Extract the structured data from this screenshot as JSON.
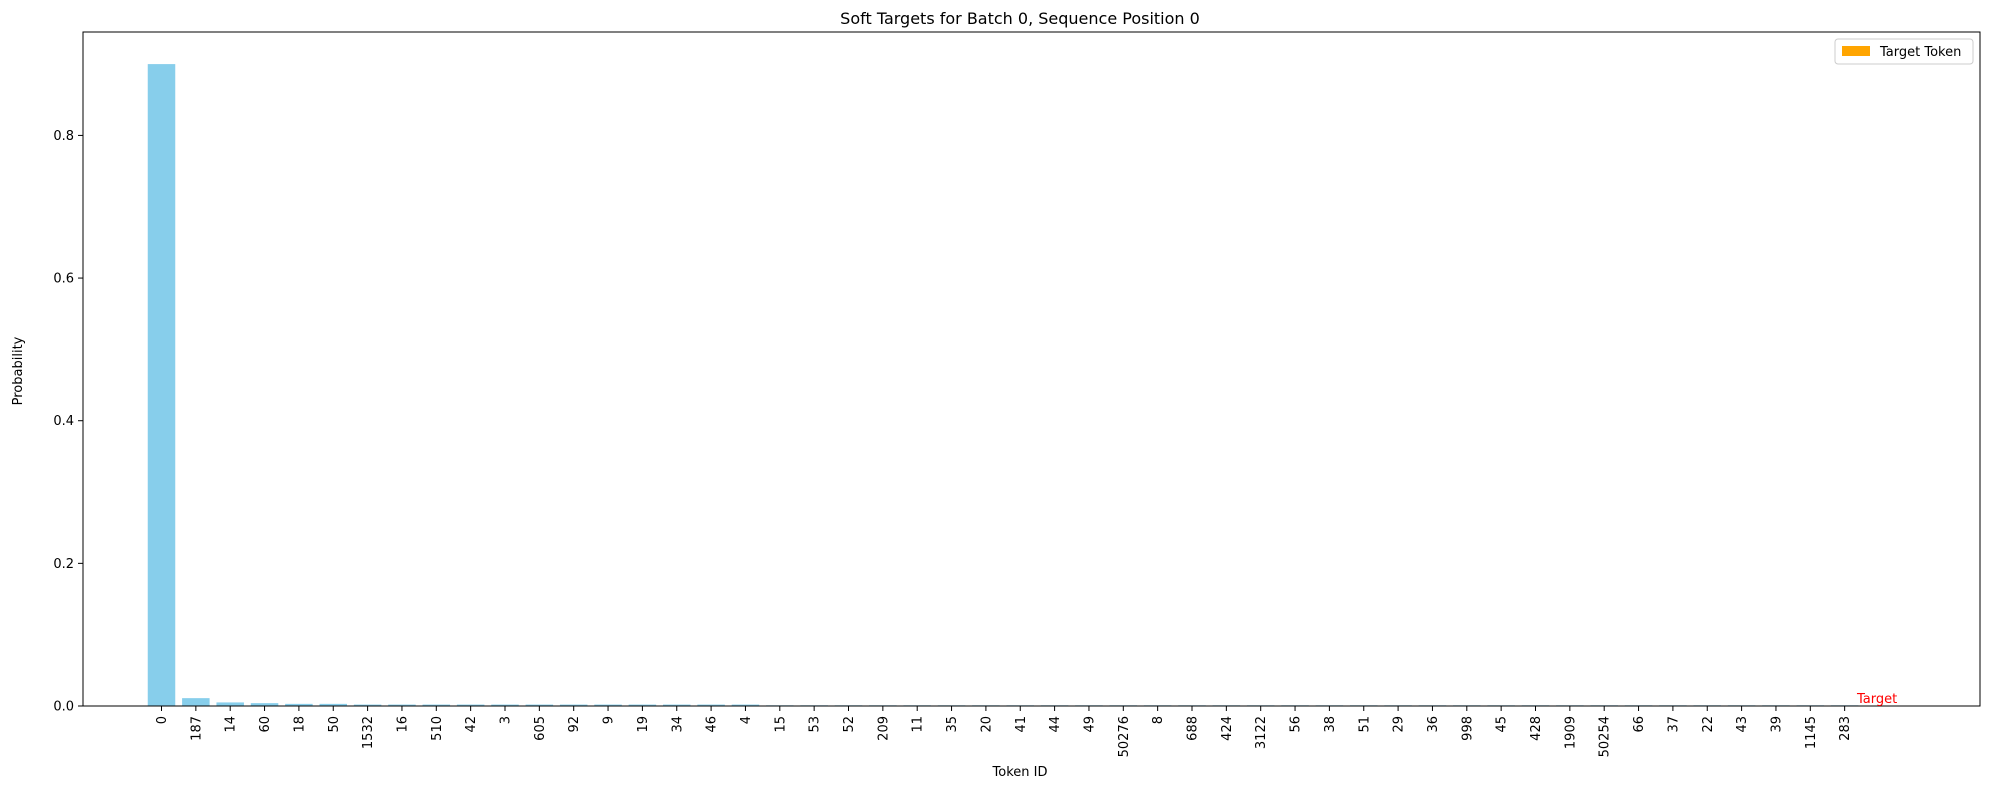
{
  "chart_data": {
    "type": "bar",
    "title": "Soft Targets for Batch 0, Sequence Position 0",
    "xlabel": "Token ID",
    "ylabel": "Probability",
    "ylim": [
      0,
      0.945
    ],
    "yticks": [
      0.0,
      0.2,
      0.4,
      0.6,
      0.8
    ],
    "ytick_labels": [
      "0.0",
      "0.2",
      "0.4",
      "0.6",
      "0.8"
    ],
    "categories": [
      "0",
      "187",
      "14",
      "60",
      "18",
      "50",
      "1532",
      "16",
      "510",
      "42",
      "3",
      "605",
      "92",
      "9",
      "19",
      "34",
      "46",
      "4",
      "15",
      "53",
      "52",
      "209",
      "11",
      "35",
      "20",
      "41",
      "44",
      "49",
      "50276",
      "8",
      "688",
      "424",
      "3122",
      "56",
      "38",
      "51",
      "29",
      "36",
      "998",
      "45",
      "428",
      "1909",
      "50254",
      "66",
      "37",
      "22",
      "43",
      "39",
      "1145",
      "283"
    ],
    "values": [
      0.9,
      0.011,
      0.005,
      0.004,
      0.003,
      0.003,
      0.002,
      0.002,
      0.002,
      0.002,
      0.002,
      0.002,
      0.002,
      0.002,
      0.002,
      0.002,
      0.002,
      0.002,
      0.001,
      0.001,
      0.001,
      0.001,
      0.001,
      0.001,
      0.001,
      0.001,
      0.001,
      0.001,
      0.001,
      0.001,
      0.001,
      0.001,
      0.001,
      0.001,
      0.001,
      0.001,
      0.001,
      0.001,
      0.001,
      0.001,
      0.001,
      0.001,
      0.001,
      0.001,
      0.001,
      0.001,
      0.001,
      0.001,
      0.001,
      0.001
    ],
    "bar_color": "#87ceeb",
    "target_color": "#ffa500",
    "legend": {
      "label": "Target Token",
      "placement": "top-right"
    },
    "annotation": {
      "text": "Target",
      "color": "#ff0000"
    },
    "grid": false
  }
}
